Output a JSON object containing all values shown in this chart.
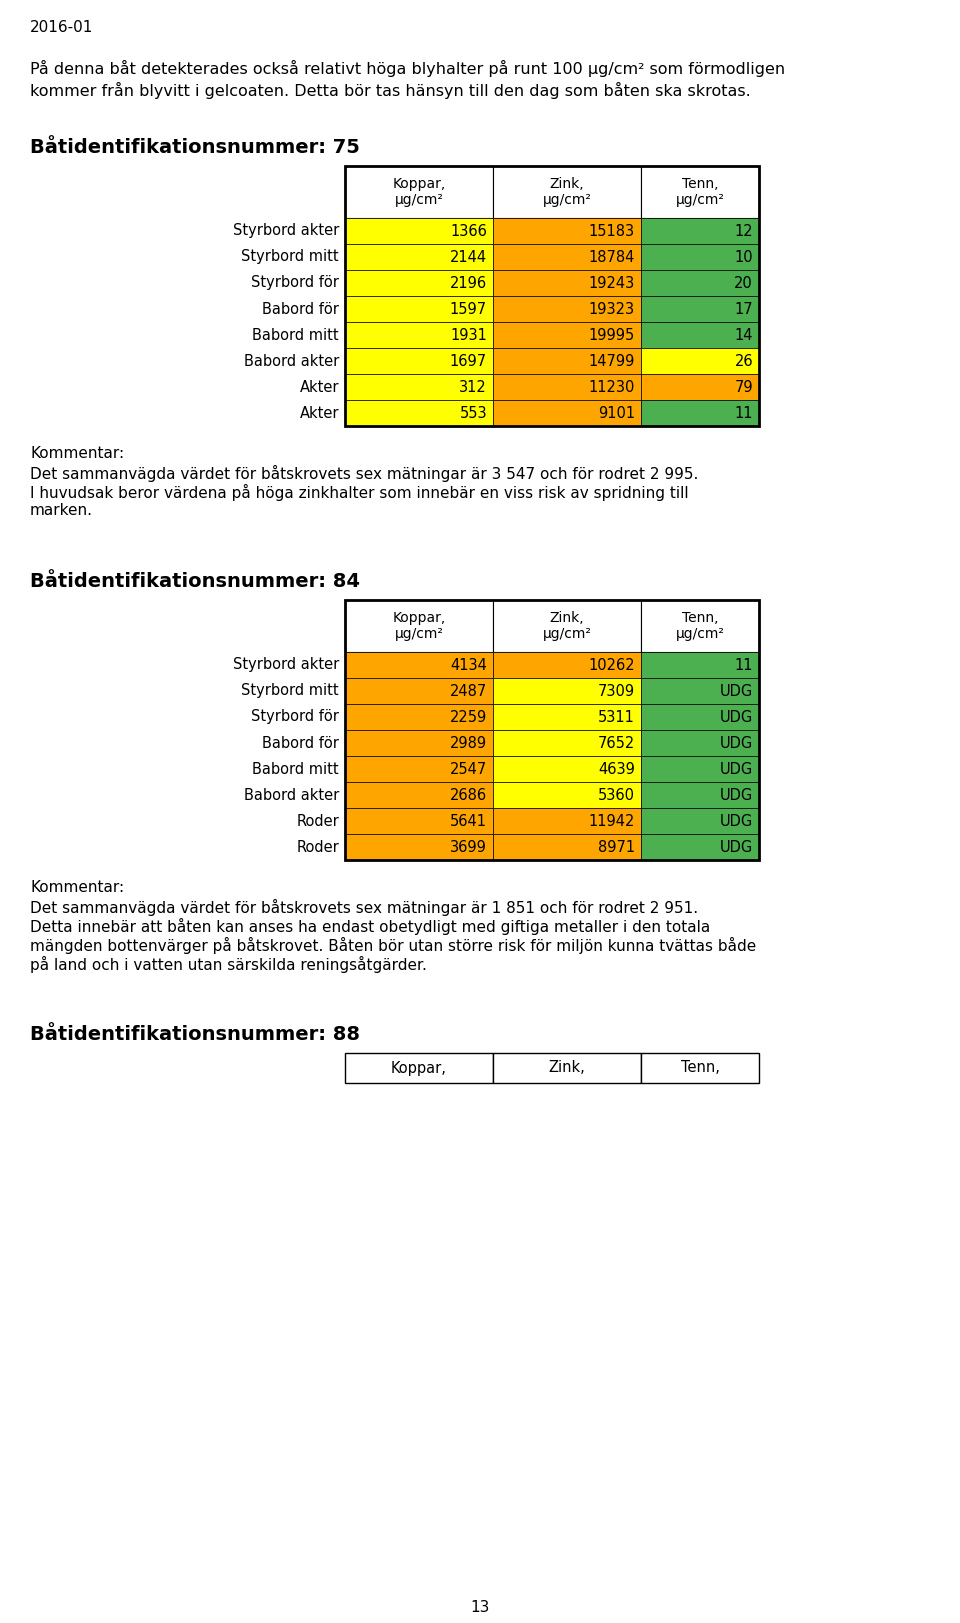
{
  "page_label": "2016-01",
  "intro_text_line1": "På denna båt detekterades också relativt höga blyhalter på runt 100 μg/cm² som förmodligen",
  "intro_text_line2": "kommer från blyvitt i gelcoaten. Detta bör tas hänsyn till den dag som båten ska skrotas.",
  "section1_title": "Båtidentifikationsnummer: 75",
  "table1_headers": [
    "Koppar,\nμg/cm²",
    "Zink,\nμg/cm²",
    "Tenn,\nμg/cm²"
  ],
  "table1_rows": [
    {
      "label": "Styrbord akter",
      "values": [
        "1366",
        "15183",
        "12"
      ],
      "colors": [
        "#FFFF00",
        "#FFA500",
        "#4CAF50"
      ]
    },
    {
      "label": "Styrbord mitt",
      "values": [
        "2144",
        "18784",
        "10"
      ],
      "colors": [
        "#FFFF00",
        "#FFA500",
        "#4CAF50"
      ]
    },
    {
      "label": "Styrbord för",
      "values": [
        "2196",
        "19243",
        "20"
      ],
      "colors": [
        "#FFFF00",
        "#FFA500",
        "#4CAF50"
      ]
    },
    {
      "label": "Babord för",
      "values": [
        "1597",
        "19323",
        "17"
      ],
      "colors": [
        "#FFFF00",
        "#FFA500",
        "#4CAF50"
      ]
    },
    {
      "label": "Babord mitt",
      "values": [
        "1931",
        "19995",
        "14"
      ],
      "colors": [
        "#FFFF00",
        "#FFA500",
        "#4CAF50"
      ]
    },
    {
      "label": "Babord akter",
      "values": [
        "1697",
        "14799",
        "26"
      ],
      "colors": [
        "#FFFF00",
        "#FFA500",
        "#FFFF00"
      ]
    },
    {
      "label": "Akter",
      "values": [
        "312",
        "11230",
        "79"
      ],
      "colors": [
        "#FFFF00",
        "#FFA500",
        "#FFA500"
      ]
    },
    {
      "label": "Akter",
      "values": [
        "553",
        "9101",
        "11"
      ],
      "colors": [
        "#FFFF00",
        "#FFA500",
        "#4CAF50"
      ]
    }
  ],
  "comment1_label": "Kommentar:",
  "comment1_lines": [
    "Det sammanvägda värdet för båtskrovets sex mätningar är 3 547 och för rodret 2 995.",
    "I huvudsak beror värdena på höga zinkhalter som innebär en viss risk av spridning till",
    "marken."
  ],
  "section2_title": "Båtidentifikationsnummer: 84",
  "table2_headers": [
    "Koppar,\nμg/cm²",
    "Zink,\nμg/cm²",
    "Tenn,\nμg/cm²"
  ],
  "table2_rows": [
    {
      "label": "Styrbord akter",
      "values": [
        "4134",
        "10262",
        "11"
      ],
      "colors": [
        "#FFA500",
        "#FFA500",
        "#4CAF50"
      ]
    },
    {
      "label": "Styrbord mitt",
      "values": [
        "2487",
        "7309",
        "UDG"
      ],
      "colors": [
        "#FFA500",
        "#FFFF00",
        "#4CAF50"
      ]
    },
    {
      "label": "Styrbord för",
      "values": [
        "2259",
        "5311",
        "UDG"
      ],
      "colors": [
        "#FFA500",
        "#FFFF00",
        "#4CAF50"
      ]
    },
    {
      "label": "Babord för",
      "values": [
        "2989",
        "7652",
        "UDG"
      ],
      "colors": [
        "#FFA500",
        "#FFFF00",
        "#4CAF50"
      ]
    },
    {
      "label": "Babord mitt",
      "values": [
        "2547",
        "4639",
        "UDG"
      ],
      "colors": [
        "#FFA500",
        "#FFFF00",
        "#4CAF50"
      ]
    },
    {
      "label": "Babord akter",
      "values": [
        "2686",
        "5360",
        "UDG"
      ],
      "colors": [
        "#FFA500",
        "#FFFF00",
        "#4CAF50"
      ]
    },
    {
      "label": "Roder",
      "values": [
        "5641",
        "11942",
        "UDG"
      ],
      "colors": [
        "#FFA500",
        "#FFA500",
        "#4CAF50"
      ]
    },
    {
      "label": "Roder",
      "values": [
        "3699",
        "8971",
        "UDG"
      ],
      "colors": [
        "#FFA500",
        "#FFA500",
        "#4CAF50"
      ]
    }
  ],
  "comment2_label": "Kommentar:",
  "comment2_lines": [
    "Det sammanvägda värdet för båtskrovets sex mätningar är 1 851 och för rodret 2 951.",
    "Detta innebär att båten kan anses ha endast obetydligt med giftiga metaller i den totala",
    "mängden bottenvärger på båtskrovet. Båten bör utan större risk för miljön kunna tvättas både",
    "på land och i vatten utan särskilda reningsåtgärder."
  ],
  "section3_title": "Båtidentifikationsnummer: 88",
  "table3_headers": [
    "Koppar,",
    "Zink,",
    "Tenn,"
  ],
  "page_number": "13",
  "bg_color": "#FFFFFF"
}
